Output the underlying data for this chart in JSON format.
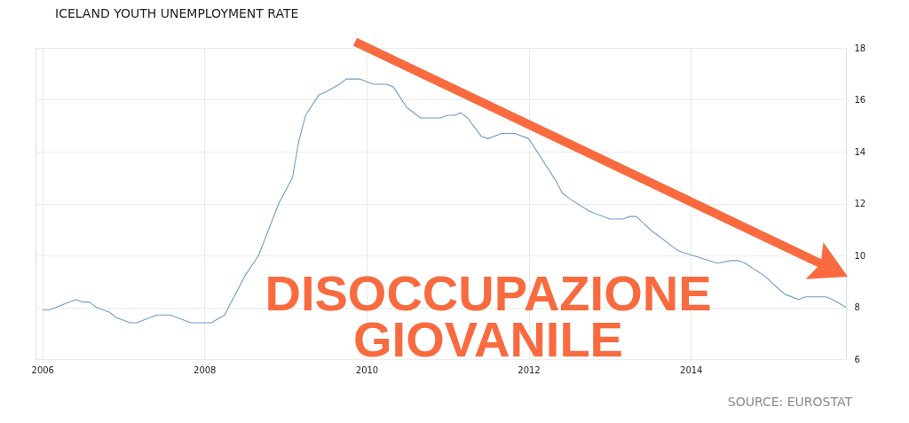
{
  "chart_data": {
    "type": "line",
    "title": "ICELAND YOUTH UNEMPLOYMENT RATE",
    "x": [
      "2006-01",
      "2006-02",
      "2006-06",
      "2006-07",
      "2006-08",
      "2006-09",
      "2006-11",
      "2006-12",
      "2007-02",
      "2007-03",
      "2007-06",
      "2007-08",
      "2007-11",
      "2008-02",
      "2008-04",
      "2008-05",
      "2008-07",
      "2008-09",
      "2008-12",
      "2009-02",
      "2009-03",
      "2009-04",
      "2009-06",
      "2009-07",
      "2009-09",
      "2009-10",
      "2009-12",
      "2010-02",
      "2010-04",
      "2010-05",
      "2010-07",
      "2010-09",
      "2010-12",
      "2011-01",
      "2011-02",
      "2011-03",
      "2011-04",
      "2011-06",
      "2011-07",
      "2011-09",
      "2011-11",
      "2012-01",
      "2012-02",
      "2012-05",
      "2012-06",
      "2012-07",
      "2012-10",
      "2013-01",
      "2013-03",
      "2013-04",
      "2013-05",
      "2013-07",
      "2013-11",
      "2013-12",
      "2014-05",
      "2014-07",
      "2014-08",
      "2014-09",
      "2014-12",
      "2015-02",
      "2015-03",
      "2015-05",
      "2015-06",
      "2015-09",
      "2015-10",
      "2015-12"
    ],
    "series": [
      {
        "color": "#6f9ccc",
        "values": [
          7.9,
          7.9,
          8.3,
          8.2,
          8.2,
          8.0,
          7.8,
          7.6,
          7.4,
          7.4,
          7.7,
          7.7,
          7.4,
          7.4,
          7.7,
          8.2,
          9.2,
          10.0,
          12.0,
          13.0,
          14.4,
          15.4,
          16.2,
          16.3,
          16.6,
          16.8,
          16.8,
          16.6,
          16.6,
          16.5,
          15.7,
          15.3,
          15.3,
          15.4,
          15.4,
          15.5,
          15.3,
          14.6,
          14.5,
          14.7,
          14.7,
          14.5,
          14.1,
          12.9,
          12.4,
          12.2,
          11.7,
          11.4,
          11.4,
          11.5,
          11.5,
          11.0,
          10.2,
          10.1,
          9.7,
          9.8,
          9.8,
          9.7,
          9.2,
          8.7,
          8.5,
          8.3,
          8.4,
          8.4,
          8.3,
          8.0
        ]
      }
    ],
    "xlim": [
      "2005-12",
      "2015-12"
    ],
    "xticks": [
      "2006",
      "2008",
      "2010",
      "2012",
      "2014"
    ],
    "ylim": [
      6,
      18
    ],
    "yticks": [
      6,
      8,
      10,
      12,
      14,
      16,
      18
    ],
    "grid": true,
    "annotations": [
      "DISOCCUPAZIONE GIOVANILE",
      "SOURCE: EUROSTAT"
    ]
  }
}
